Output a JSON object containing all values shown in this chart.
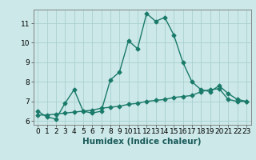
{
  "title": "",
  "xlabel": "Humidex (Indice chaleur)",
  "ylabel": "",
  "background_color": "#cce8e8",
  "grid_color": "#aacfcf",
  "line_color": "#1a7a6a",
  "xlim": [
    -0.5,
    23.5
  ],
  "ylim": [
    5.8,
    11.7
  ],
  "xticks": [
    0,
    1,
    2,
    3,
    4,
    5,
    6,
    7,
    8,
    9,
    10,
    11,
    12,
    13,
    14,
    15,
    16,
    17,
    18,
    19,
    20,
    21,
    22,
    23
  ],
  "yticks": [
    6,
    7,
    8,
    9,
    10,
    11
  ],
  "line1_x": [
    0,
    1,
    2,
    3,
    4,
    5,
    6,
    7,
    8,
    9,
    10,
    11,
    12,
    13,
    14,
    15,
    16,
    17,
    18,
    19,
    20,
    21,
    22,
    23
  ],
  "line1_y": [
    6.5,
    6.2,
    6.1,
    6.9,
    7.6,
    6.5,
    6.4,
    6.5,
    8.1,
    8.5,
    10.1,
    9.7,
    11.5,
    11.1,
    11.3,
    10.4,
    9.0,
    8.0,
    7.6,
    7.5,
    7.8,
    7.4,
    7.1,
    7.0
  ],
  "line2_x": [
    0,
    1,
    2,
    3,
    4,
    5,
    6,
    7,
    8,
    9,
    10,
    11,
    12,
    13,
    14,
    15,
    16,
    17,
    18,
    19,
    20,
    21,
    22,
    23
  ],
  "line2_y": [
    6.3,
    6.3,
    6.35,
    6.4,
    6.45,
    6.5,
    6.55,
    6.65,
    6.7,
    6.75,
    6.85,
    6.9,
    7.0,
    7.05,
    7.1,
    7.2,
    7.25,
    7.3,
    7.5,
    7.6,
    7.65,
    7.1,
    7.0,
    7.0
  ],
  "marker": "D",
  "marker_size": 2.5,
  "linewidth": 1.0,
  "xlabel_fontsize": 7.5,
  "tick_fontsize": 6.5
}
